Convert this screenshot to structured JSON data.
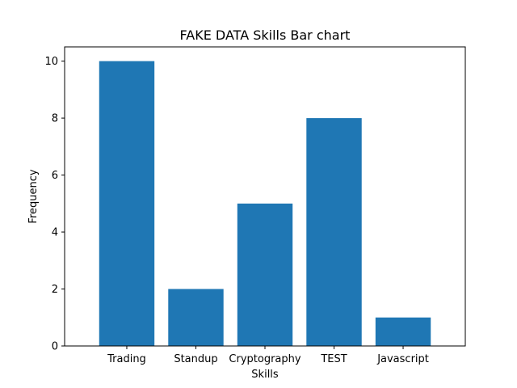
{
  "chart_data": {
    "type": "bar",
    "title": "FAKE DATA Skills Bar chart",
    "xlabel": "Skills",
    "ylabel": "Frequency",
    "categories": [
      "Trading",
      "Standup",
      "Cryptography",
      "TEST",
      "Javascript"
    ],
    "values": [
      10,
      2,
      5,
      8,
      1
    ],
    "ylim": [
      0,
      10.5
    ],
    "yticks": [
      0,
      2,
      4,
      6,
      8,
      10
    ],
    "grid": false,
    "bar_color": "#1f77b4"
  }
}
